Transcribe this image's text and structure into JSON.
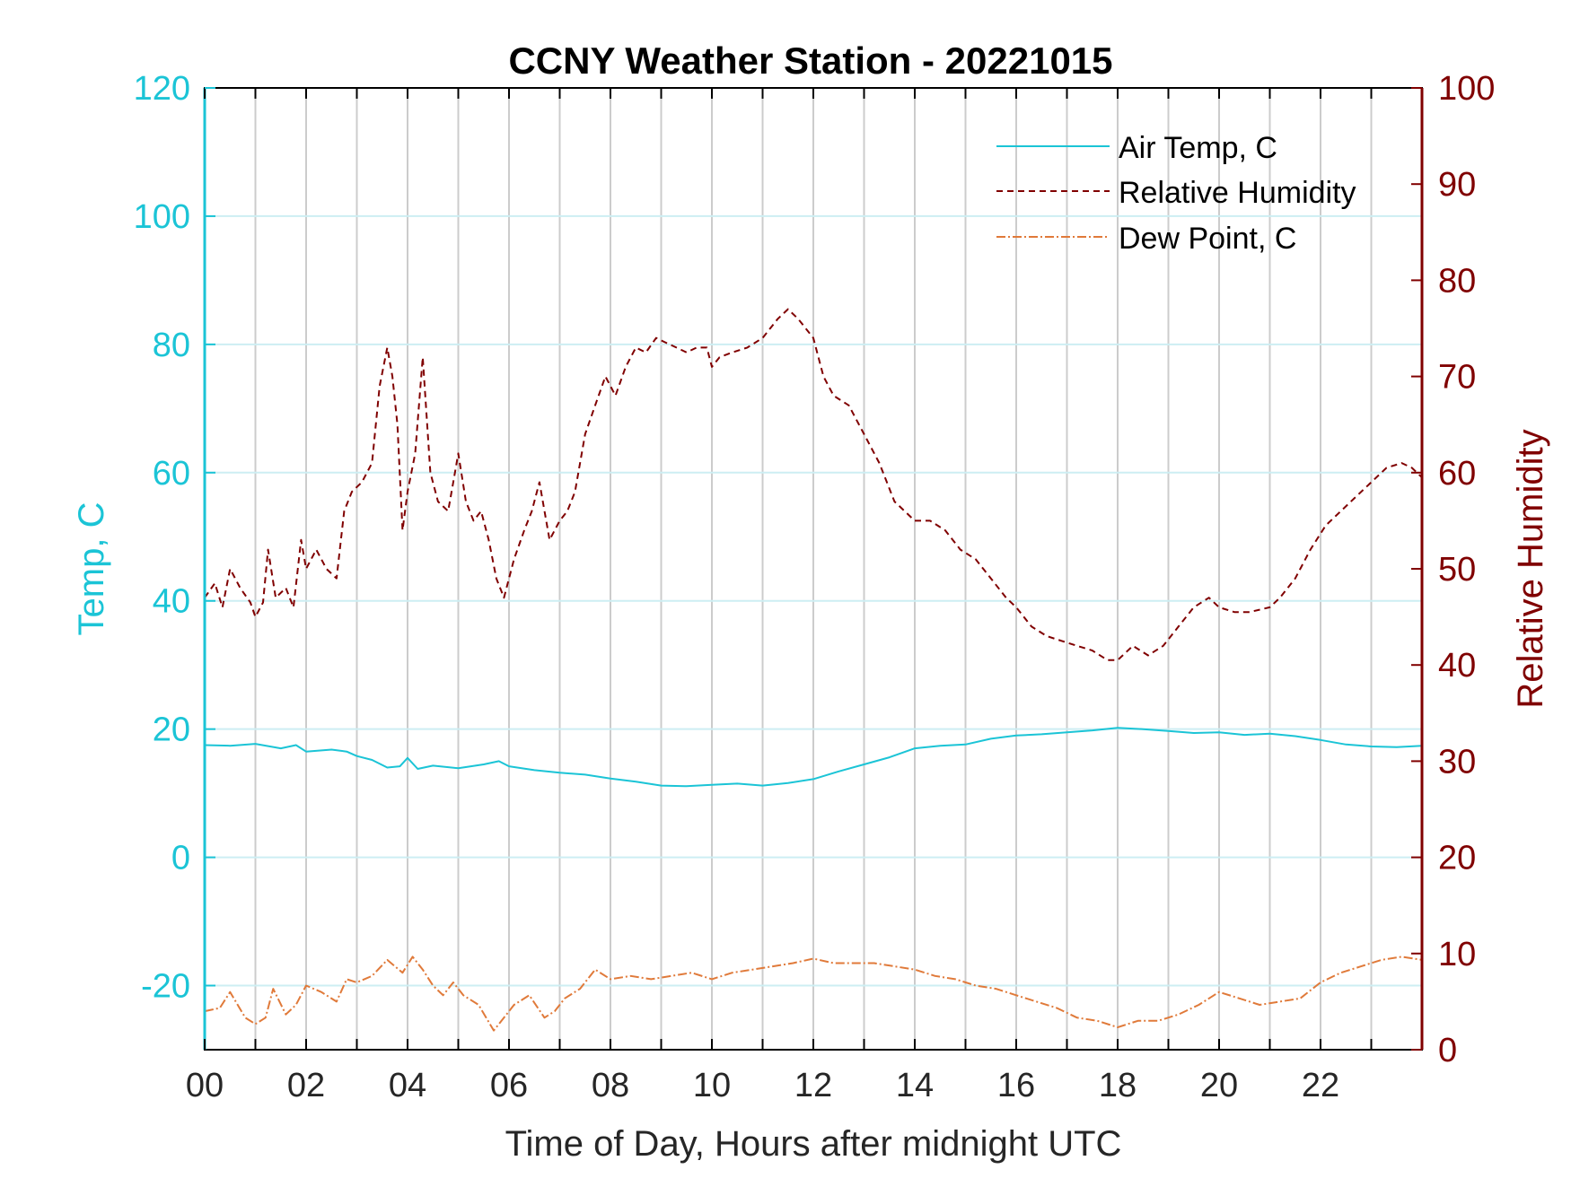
{
  "colors": {
    "air_temp": "#1bc4d6",
    "humidity": "#800000",
    "dew_point": "#e07a3a",
    "vgrid": "#cccccc",
    "hgrid": "#cdeef3",
    "axis": "#000000"
  },
  "chart_data": {
    "type": "line",
    "title": "CCNY Weather Station - 20221015",
    "xlabel": "Time of Day, Hours after midnight UTC",
    "ylabel_left": "Temp, C",
    "ylabel_right": "Relative Humidity",
    "xlim": [
      0,
      24
    ],
    "ylim_left": [
      -30,
      120
    ],
    "ylim_right": [
      0,
      100
    ],
    "x_ticks": [
      0,
      2,
      4,
      6,
      8,
      10,
      12,
      14,
      16,
      18,
      20,
      22
    ],
    "x_tick_labels": [
      "00",
      "02",
      "04",
      "06",
      "08",
      "10",
      "12",
      "14",
      "16",
      "18",
      "20",
      "22"
    ],
    "y_left_ticks": [
      -20,
      0,
      20,
      40,
      60,
      80,
      100,
      120
    ],
    "y_left_tick_labels": [
      "-20",
      "0",
      "20",
      "40",
      "60",
      "80",
      "100",
      "120"
    ],
    "y_right_ticks": [
      0,
      10,
      20,
      30,
      40,
      50,
      60,
      70,
      80,
      90,
      100
    ],
    "y_right_tick_labels": [
      "0",
      "10",
      "20",
      "30",
      "40",
      "50",
      "60",
      "70",
      "80",
      "90",
      "100"
    ],
    "legend_position": "top-right",
    "series": [
      {
        "name": "Air Temp, C",
        "axis": "left",
        "style": "solid",
        "x": [
          0,
          0.5,
          1,
          1.5,
          1.8,
          2,
          2.5,
          2.8,
          3,
          3.3,
          3.6,
          3.85,
          4,
          4.2,
          4.5,
          5,
          5.5,
          5.8,
          6,
          6.5,
          7,
          7.5,
          8,
          8.5,
          9,
          9.5,
          10,
          10.5,
          11,
          11.5,
          12,
          12.5,
          13,
          13.5,
          14,
          14.5,
          15,
          15.5,
          16,
          16.5,
          17,
          17.5,
          18,
          18.5,
          19,
          19.5,
          20,
          20.5,
          21,
          21.5,
          22,
          22.5,
          23,
          23.5,
          24
        ],
        "values": [
          17.5,
          17.4,
          17.7,
          17.0,
          17.5,
          16.5,
          16.8,
          16.5,
          15.8,
          15.2,
          14.0,
          14.2,
          15.5,
          13.8,
          14.3,
          13.9,
          14.5,
          15.0,
          14.2,
          13.6,
          13.2,
          12.9,
          12.3,
          11.8,
          11.2,
          11.1,
          11.3,
          11.5,
          11.2,
          11.6,
          12.2,
          13.4,
          14.5,
          15.6,
          17.0,
          17.4,
          17.6,
          18.5,
          19.0,
          19.2,
          19.5,
          19.8,
          20.2,
          20.0,
          19.7,
          19.4,
          19.5,
          19.1,
          19.3,
          18.9,
          18.3,
          17.6,
          17.3,
          17.2,
          17.4
        ]
      },
      {
        "name": "Relative Humidity",
        "axis": "right",
        "style": "dashed",
        "x": [
          0,
          0.2,
          0.35,
          0.5,
          0.7,
          0.9,
          1.0,
          1.15,
          1.25,
          1.4,
          1.6,
          1.75,
          1.9,
          2.0,
          2.2,
          2.4,
          2.6,
          2.75,
          2.9,
          3.1,
          3.3,
          3.45,
          3.6,
          3.7,
          3.8,
          3.9,
          4.0,
          4.15,
          4.3,
          4.45,
          4.6,
          4.8,
          4.9,
          5.0,
          5.15,
          5.3,
          5.45,
          5.6,
          5.75,
          5.9,
          6.1,
          6.3,
          6.45,
          6.6,
          6.8,
          7.0,
          7.15,
          7.3,
          7.5,
          7.7,
          7.9,
          8.1,
          8.3,
          8.5,
          8.7,
          8.9,
          9.1,
          9.3,
          9.5,
          9.7,
          9.9,
          10.0,
          10.15,
          10.4,
          10.7,
          11.0,
          11.3,
          11.5,
          11.7,
          12.0,
          12.2,
          12.4,
          12.7,
          13.0,
          13.3,
          13.6,
          14.0,
          14.3,
          14.6,
          14.9,
          15.2,
          15.5,
          15.8,
          16.0,
          16.3,
          16.6,
          16.9,
          17.2,
          17.5,
          17.8,
          18.0,
          18.3,
          18.6,
          18.9,
          19.2,
          19.5,
          19.8,
          20.0,
          20.3,
          20.6,
          21.0,
          21.2,
          21.5,
          21.8,
          22.1,
          22.4,
          22.7,
          23.0,
          23.3,
          23.6,
          23.8,
          24.0
        ],
        "values": [
          47,
          48.5,
          46,
          50,
          48,
          46.5,
          45,
          46.5,
          52,
          47,
          48,
          46,
          53,
          50,
          52,
          50,
          49,
          56,
          58,
          59,
          61,
          69,
          73,
          70,
          65,
          54,
          58,
          62,
          72,
          60,
          57,
          56,
          59,
          62,
          57,
          55,
          56,
          53,
          49,
          47,
          51,
          54,
          56,
          59,
          53,
          55,
          56,
          58,
          64,
          67,
          70,
          68,
          71,
          73,
          72.5,
          74,
          73.5,
          73,
          72.5,
          73,
          73,
          71,
          72,
          72.5,
          73,
          74,
          76,
          77,
          76,
          74,
          70,
          68,
          67,
          64,
          61,
          57,
          55,
          55,
          54,
          52,
          51,
          49,
          47,
          46,
          44,
          43,
          42.5,
          42,
          41.5,
          40.5,
          40.5,
          42,
          41,
          42,
          44,
          46,
          47,
          46,
          45.5,
          45.5,
          46,
          47,
          49,
          52,
          54.5,
          56,
          57.5,
          59,
          60.5,
          61,
          60.5,
          59.5
        ]
      },
      {
        "name": "Dew Point, C",
        "axis": "left",
        "style": "dashdot",
        "x": [
          0,
          0.3,
          0.5,
          0.8,
          1.0,
          1.2,
          1.35,
          1.6,
          1.8,
          2.0,
          2.3,
          2.6,
          2.8,
          3.0,
          3.3,
          3.6,
          3.9,
          4.1,
          4.3,
          4.5,
          4.7,
          4.9,
          5.1,
          5.4,
          5.7,
          5.9,
          6.1,
          6.4,
          6.7,
          6.9,
          7.1,
          7.4,
          7.7,
          8.0,
          8.4,
          8.8,
          9.2,
          9.6,
          10.0,
          10.4,
          10.8,
          11.2,
          11.6,
          12.0,
          12.4,
          12.8,
          13.2,
          13.6,
          14.0,
          14.4,
          14.8,
          15.2,
          15.6,
          16.0,
          16.4,
          16.8,
          17.2,
          17.6,
          18.0,
          18.4,
          18.8,
          19.2,
          19.6,
          20.0,
          20.4,
          20.8,
          21.2,
          21.6,
          22.0,
          22.4,
          22.8,
          23.2,
          23.6,
          24.0
        ],
        "values": [
          -24,
          -23.5,
          -21,
          -25,
          -26,
          -25,
          -20.5,
          -24.5,
          -23,
          -20,
          -21,
          -22.5,
          -19,
          -19.5,
          -18.5,
          -16,
          -18,
          -15.5,
          -17.5,
          -20,
          -21.5,
          -19.5,
          -21.5,
          -23,
          -27,
          -25,
          -23,
          -21.5,
          -25,
          -24,
          -22,
          -20.5,
          -17.5,
          -19,
          -18.5,
          -19,
          -18.5,
          -18,
          -19,
          -18,
          -17.5,
          -17,
          -16.5,
          -15.8,
          -16.5,
          -16.5,
          -16.5,
          -17,
          -17.5,
          -18.5,
          -19,
          -20,
          -20.5,
          -21.5,
          -22.5,
          -23.5,
          -25,
          -25.5,
          -26.5,
          -25.5,
          -25.5,
          -24.5,
          -23,
          -21,
          -22,
          -23,
          -22.5,
          -22,
          -19.5,
          -18,
          -17,
          -16,
          -15.5,
          -16
        ]
      }
    ]
  }
}
